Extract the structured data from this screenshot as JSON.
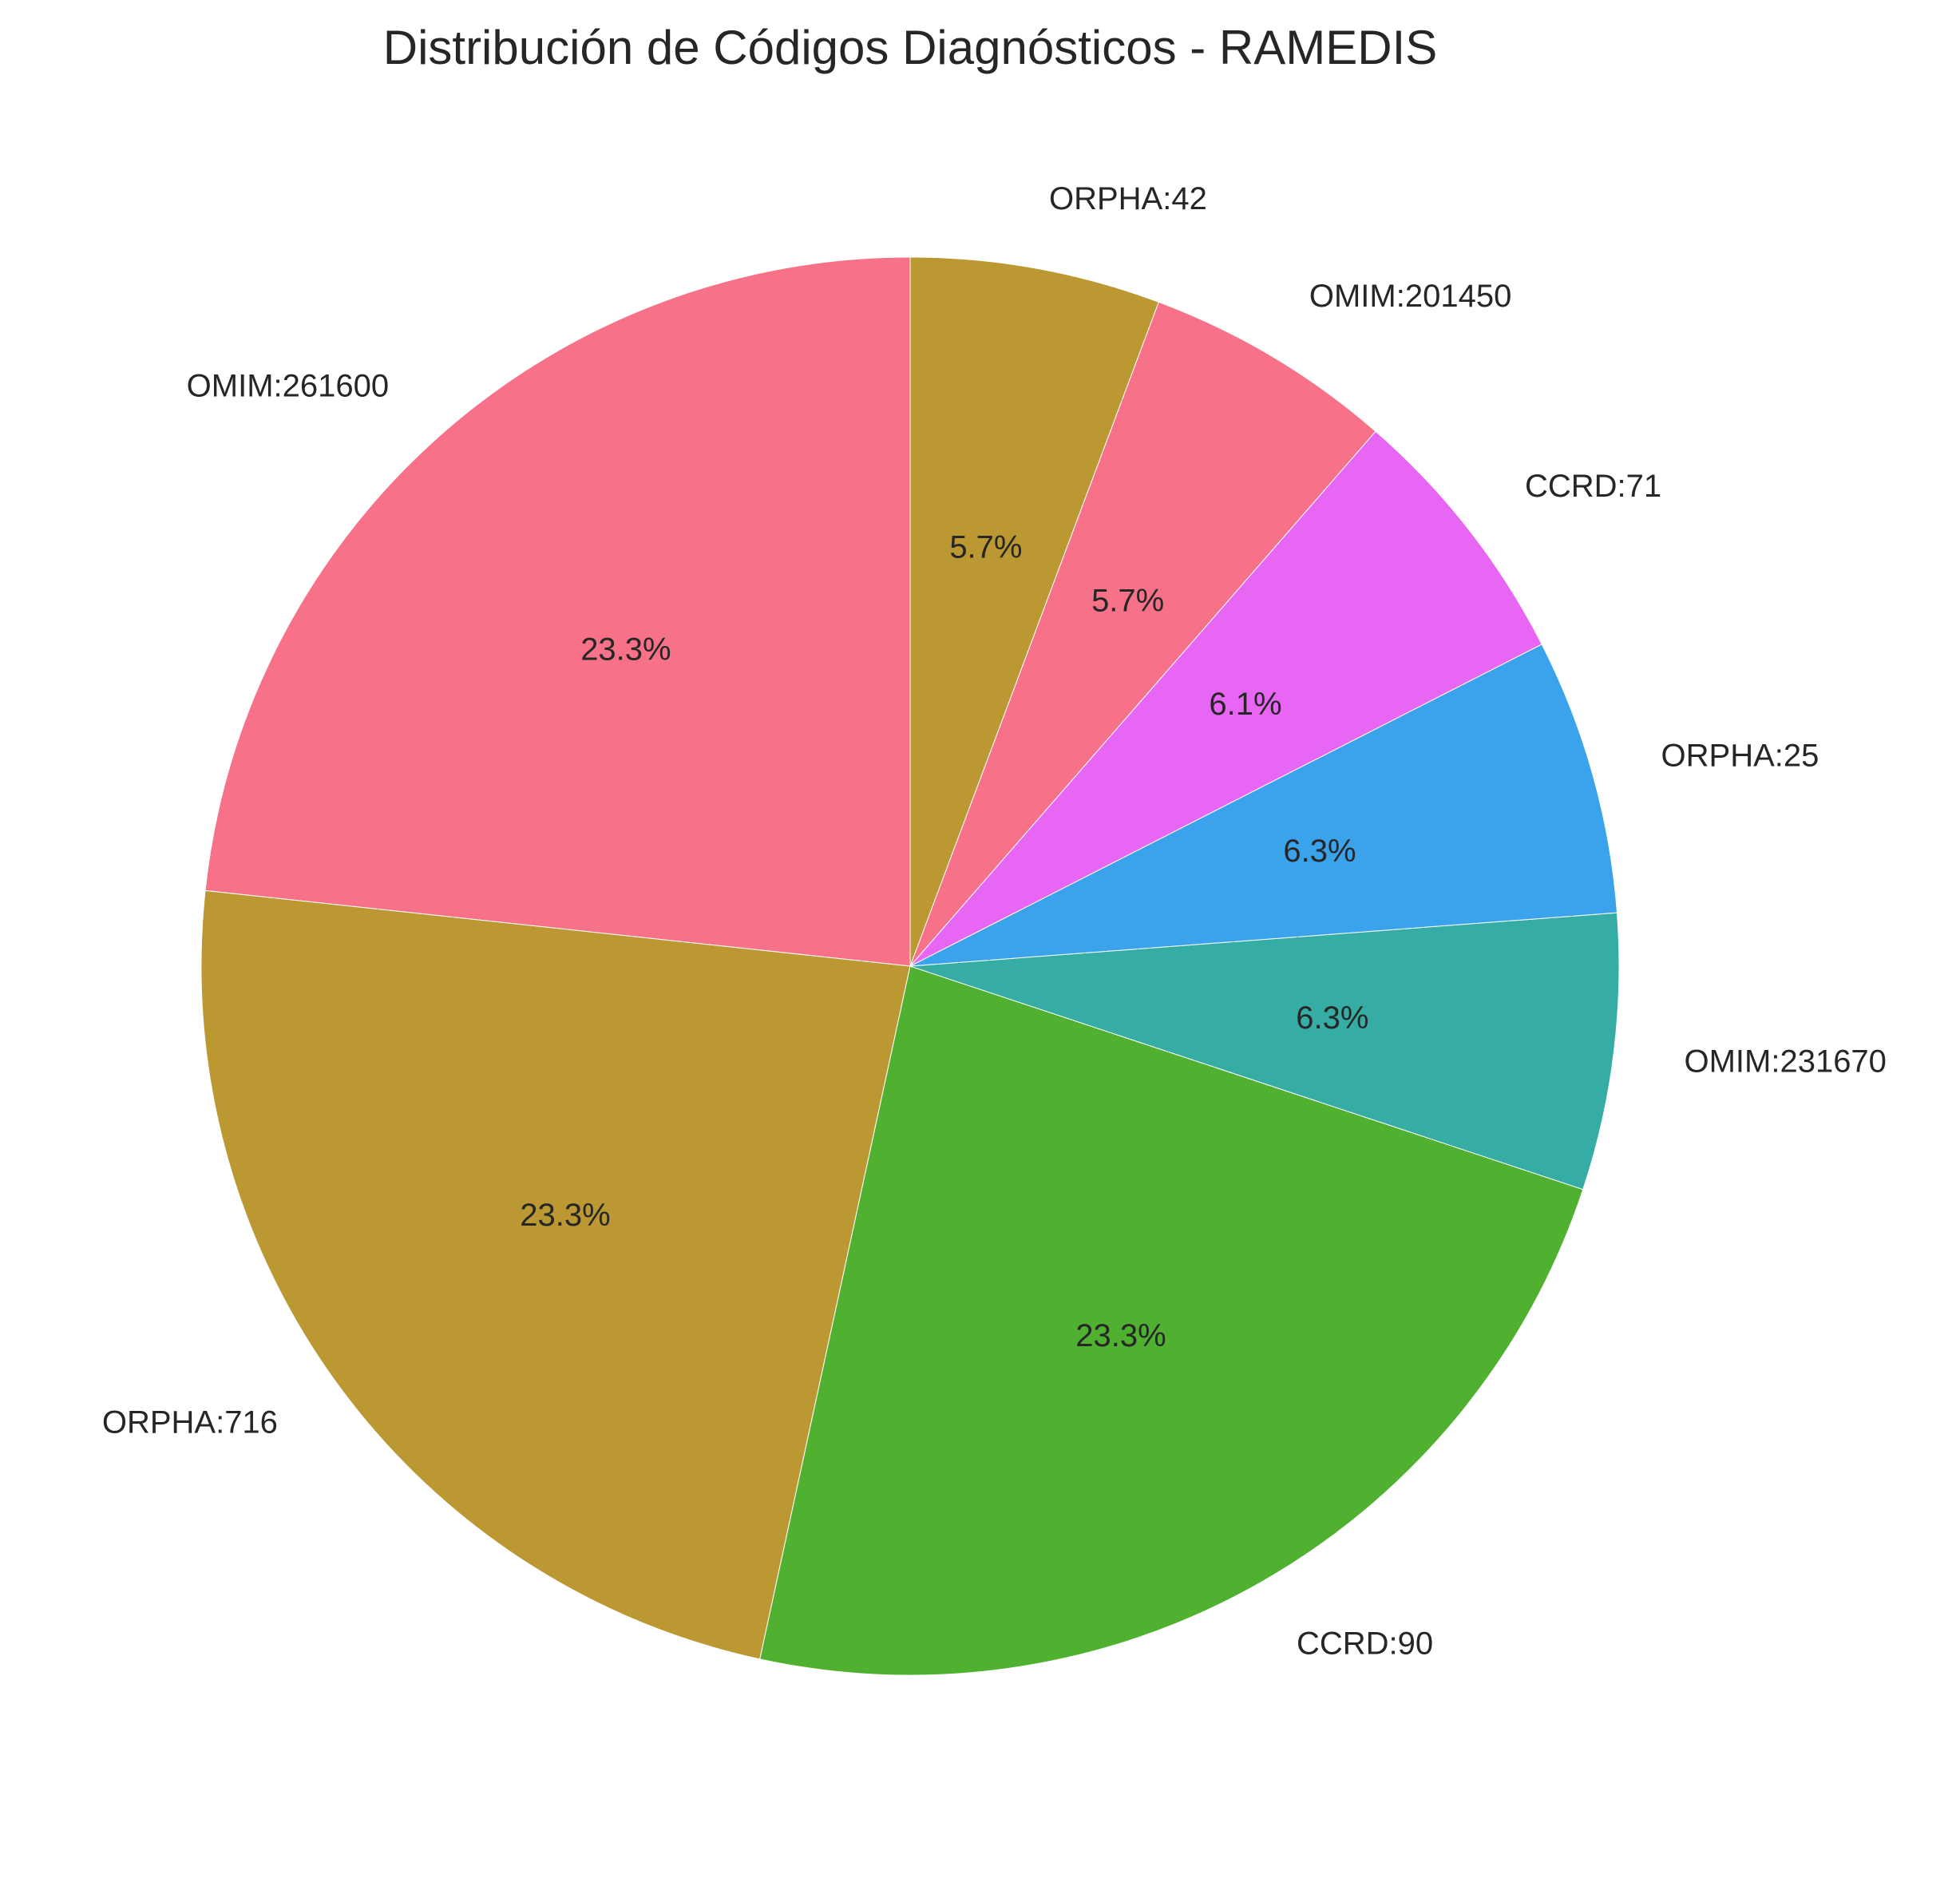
{
  "chart_data": {
    "type": "pie",
    "title": "Distribución de Códigos Diagnósticos - RAMEDIS",
    "start_angle_deg": 90,
    "direction": "counterclockwise",
    "slices": [
      {
        "label": "OMIM:261600",
        "value": 23.3,
        "pct_label": "23.3%",
        "color": "#f77189"
      },
      {
        "label": "ORPHA:716",
        "value": 23.3,
        "pct_label": "23.3%",
        "color": "#bb9832"
      },
      {
        "label": "CCRD:90",
        "value": 23.3,
        "pct_label": "23.3%",
        "color": "#50b131"
      },
      {
        "label": "OMIM:231670",
        "value": 6.3,
        "pct_label": "6.3%",
        "color": "#36ada4"
      },
      {
        "label": "ORPHA:25",
        "value": 6.3,
        "pct_label": "6.3%",
        "color": "#3ba3ec"
      },
      {
        "label": "CCRD:71",
        "value": 6.1,
        "pct_label": "6.1%",
        "color": "#e866f4"
      },
      {
        "label": "OMIM:201450",
        "value": 5.7,
        "pct_label": "5.7%",
        "color": "#f77189"
      },
      {
        "label": "ORPHA:42",
        "value": 5.7,
        "pct_label": "5.7%",
        "color": "#bb9832"
      }
    ]
  }
}
